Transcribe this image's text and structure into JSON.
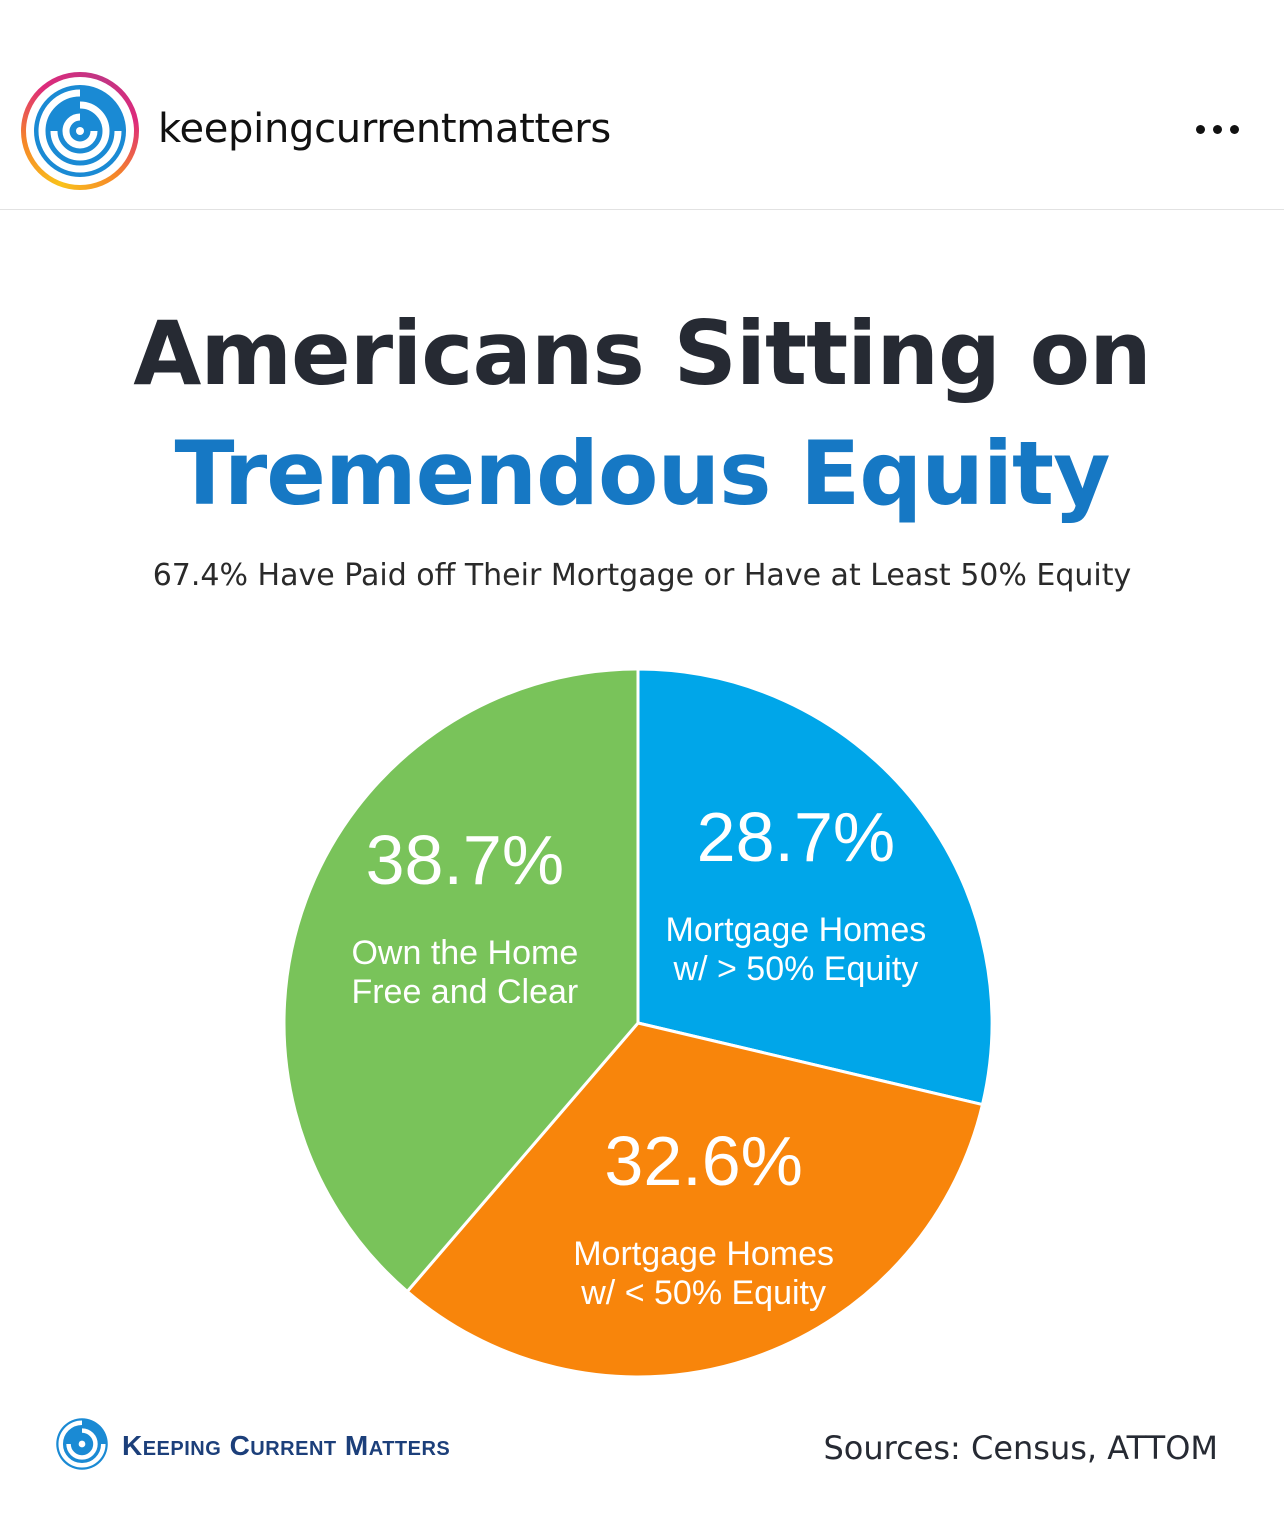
{
  "post": {
    "username": "keepingcurrentmatters",
    "more_icon": "ellipsis-icon"
  },
  "graphic": {
    "title_line1": "Americans Sitting on",
    "title_line2": "Tremendous Equity",
    "subtitle": "67.4% Have Paid off Their Mortgage or Have at Least 50% Equity",
    "brand": "Keeping Current Matters",
    "sources": "Sources: Census, ATTOM",
    "colors": {
      "title_dark": "#262a33",
      "title_blue": "#1678c4",
      "slice_blue": "#00a6e9",
      "slice_orange": "#f8850b",
      "slice_green": "#79c35a"
    }
  },
  "chart_data": {
    "type": "pie",
    "slices": [
      {
        "value": 28.7,
        "label_value": "28.7%",
        "label_line1": "Mortgage Homes",
        "label_line2": "w/ > 50% Equity",
        "color": "#00a6e9"
      },
      {
        "value": 32.6,
        "label_value": "32.6%",
        "label_line1": "Mortgage Homes",
        "label_line2": "w/ < 50% Equity",
        "color": "#f8850b"
      },
      {
        "value": 38.7,
        "label_value": "38.7%",
        "label_line1": "Own the Home",
        "label_line2": "Free and Clear",
        "color": "#79c35a"
      }
    ],
    "start_angle": "12 o'clock",
    "direction": "clockwise"
  }
}
